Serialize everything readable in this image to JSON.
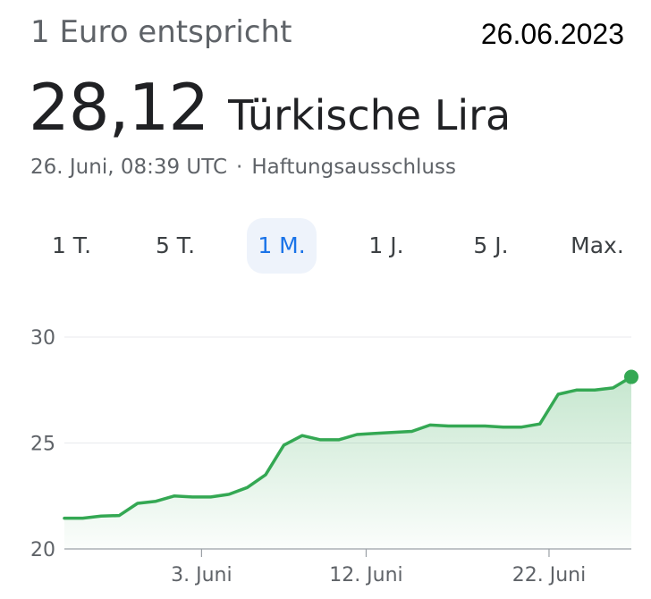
{
  "header": {
    "subtitle": "1 Euro entspricht",
    "date_tag": "26.06.2023",
    "rate_value": "28,12",
    "rate_currency": "Türkische Lira",
    "timestamp": "26. Juni, 08:39 UTC",
    "separator": "·",
    "disclaimer_link": "Haftungsausschluss"
  },
  "range_tabs": [
    {
      "label": "1 T.",
      "active": false
    },
    {
      "label": "5 T.",
      "active": false
    },
    {
      "label": "1 M.",
      "active": true
    },
    {
      "label": "1 J.",
      "active": false
    },
    {
      "label": "5 J.",
      "active": false
    },
    {
      "label": "Max.",
      "active": false
    }
  ],
  "colors": {
    "line": "#34a853",
    "fill": "#34a853",
    "grid": "#e8eaed",
    "axis": "#9aa0a6",
    "active_tab": "#1a73e8"
  },
  "chart_data": {
    "type": "area",
    "title": "",
    "xlabel": "",
    "ylabel": "",
    "ylim": [
      20,
      30
    ],
    "y_ticks": [
      20,
      25,
      30
    ],
    "x_tick_labels": [
      "3. Juni",
      "12. Juni",
      "22. Juni"
    ],
    "x_tick_days": [
      3,
      12,
      22
    ],
    "x_range_days": [
      -4.5,
      26.5
    ],
    "grid": "horizontal",
    "legend": "none",
    "series": [
      {
        "points": [
          {
            "day": -4.5,
            "value": 21.45
          },
          {
            "day": -3.5,
            "value": 21.45
          },
          {
            "day": -2.5,
            "value": 21.55
          },
          {
            "day": -1.5,
            "value": 21.58
          },
          {
            "day": -0.5,
            "value": 22.15
          },
          {
            "day": 0.5,
            "value": 22.25
          },
          {
            "day": 1.5,
            "value": 22.5
          },
          {
            "day": 2.5,
            "value": 22.45
          },
          {
            "day": 3.5,
            "value": 22.45
          },
          {
            "day": 4.5,
            "value": 22.58
          },
          {
            "day": 5.5,
            "value": 22.9
          },
          {
            "day": 6.5,
            "value": 23.5
          },
          {
            "day": 7.5,
            "value": 24.9
          },
          {
            "day": 8.5,
            "value": 25.35
          },
          {
            "day": 9.5,
            "value": 25.15
          },
          {
            "day": 10.5,
            "value": 25.15
          },
          {
            "day": 11.5,
            "value": 25.4
          },
          {
            "day": 12.5,
            "value": 25.45
          },
          {
            "day": 13.5,
            "value": 25.5
          },
          {
            "day": 14.5,
            "value": 25.55
          },
          {
            "day": 15.5,
            "value": 25.85
          },
          {
            "day": 16.5,
            "value": 25.8
          },
          {
            "day": 17.5,
            "value": 25.8
          },
          {
            "day": 18.5,
            "value": 25.8
          },
          {
            "day": 19.5,
            "value": 25.75
          },
          {
            "day": 20.5,
            "value": 25.75
          },
          {
            "day": 21.5,
            "value": 25.9
          },
          {
            "day": 22.5,
            "value": 27.3
          },
          {
            "day": 23.5,
            "value": 27.5
          },
          {
            "day": 24.5,
            "value": 27.5
          },
          {
            "day": 25.5,
            "value": 27.6
          },
          {
            "day": 26.5,
            "value": 28.12
          }
        ]
      }
    ]
  }
}
